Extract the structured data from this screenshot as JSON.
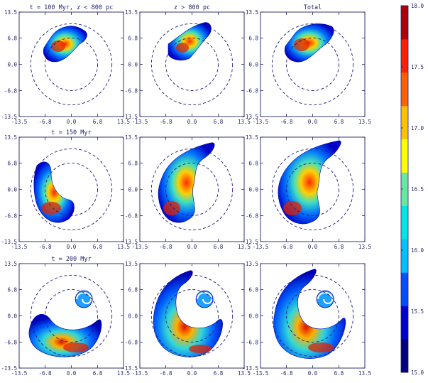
{
  "colors": {
    "frame": "#1f1f66",
    "ring": "#1a1a80",
    "colorbar": [
      "#000080",
      "#0000d0",
      "#0050ff",
      "#00c0ff",
      "#00e5e5",
      "#66e8a0",
      "#ffff00",
      "#ffc000",
      "#ff6000",
      "#ff2000",
      "#b00000"
    ]
  },
  "chart_data": [
    {
      "type": "heatmap",
      "panel": "row1-col1",
      "title": "t = 100 Myr, z < 800 pc",
      "xlim": [
        -13.5,
        13.5
      ],
      "ylim": [
        -13.5,
        13.5
      ],
      "xticks": [
        "-13.5",
        "-6.8",
        "0.0",
        "6.8",
        "13.5"
      ],
      "yticks": [
        "13.5",
        "6.8",
        "0.0",
        "-6.8",
        "-13.5"
      ]
    },
    {
      "type": "heatmap",
      "panel": "row1-col2",
      "title": "z > 800 pc",
      "xlim": [
        -13.5,
        13.5
      ],
      "ylim": [
        -13.5,
        13.5
      ],
      "xticks": [
        "-13.5",
        "-6.8",
        "0.0",
        "6.8",
        "13.5"
      ],
      "yticks": [
        "13.5",
        "6.8",
        "0.0",
        "-6.8",
        "-13.5"
      ]
    },
    {
      "type": "heatmap",
      "panel": "row1-col3",
      "title": "Total",
      "xlim": [
        -13.5,
        13.5
      ],
      "ylim": [
        -13.5,
        13.5
      ],
      "xticks": [
        "-13.5",
        "-6.8",
        "0.0",
        "6.8",
        "13.5"
      ],
      "yticks": [
        "13.5",
        "6.8",
        "0.0",
        "-6.8",
        "-13.5"
      ]
    },
    {
      "type": "heatmap",
      "panel": "row2-col1",
      "title": "t = 150 Myr",
      "xlim": [
        -13.5,
        13.5
      ],
      "ylim": [
        -13.5,
        13.5
      ],
      "xticks": [
        "-13.5",
        "-6.8",
        "0.0",
        "6.8",
        "13.5"
      ],
      "yticks": [
        "13.5",
        "6.8",
        "0.0",
        "-6.8",
        "-13.5"
      ]
    },
    {
      "type": "heatmap",
      "panel": "row2-col2",
      "title": "",
      "xlim": [
        -13.5,
        13.5
      ],
      "ylim": [
        -13.5,
        13.5
      ],
      "xticks": [
        "-13.5",
        "-6.8",
        "0.0",
        "6.8",
        "13.5"
      ],
      "yticks": [
        "13.5",
        "6.8",
        "0.0",
        "-6.8",
        "-13.5"
      ]
    },
    {
      "type": "heatmap",
      "panel": "row2-col3",
      "title": "",
      "xlim": [
        -13.5,
        13.5
      ],
      "ylim": [
        -13.5,
        13.5
      ],
      "xticks": [
        "-13.5",
        "-6.8",
        "0.0",
        "6.8",
        "13.5"
      ],
      "yticks": [
        "13.5",
        "6.8",
        "0.0",
        "-6.8",
        "-13.5"
      ]
    },
    {
      "type": "heatmap",
      "panel": "row3-col1",
      "title": "t = 200 Myr",
      "xlim": [
        -13.5,
        13.5
      ],
      "ylim": [
        -13.5,
        13.5
      ],
      "xticks": [
        "-13.5",
        "-6.8",
        "0.0",
        "6.8",
        "13.5"
      ],
      "yticks": [
        "13.5",
        "6.8",
        "0.0",
        "-6.8",
        "-13.5"
      ]
    },
    {
      "type": "heatmap",
      "panel": "row3-col2",
      "title": "",
      "xlim": [
        -13.5,
        13.5
      ],
      "ylim": [
        -13.5,
        13.5
      ],
      "xticks": [
        "-13.5",
        "-6.8",
        "0.0",
        "6.8",
        "13.5"
      ],
      "yticks": [
        "13.5",
        "6.8",
        "0.0",
        "-6.8",
        "-13.5"
      ]
    },
    {
      "type": "heatmap",
      "panel": "row3-col3",
      "title": "",
      "xlim": [
        -13.5,
        13.5
      ],
      "ylim": [
        -13.5,
        13.5
      ],
      "xticks": [
        "-13.5",
        "-6.8",
        "0.0",
        "6.8",
        "13.5"
      ],
      "yticks": [
        "13.5",
        "6.8",
        "0.0",
        "-6.8",
        "-13.5"
      ]
    }
  ],
  "colorbar": {
    "ticks": [
      "18.0",
      "17.5",
      "17.0",
      "16.5",
      "16.0",
      "15.5",
      "15.0"
    ],
    "range": [
      15.0,
      18.0
    ]
  }
}
